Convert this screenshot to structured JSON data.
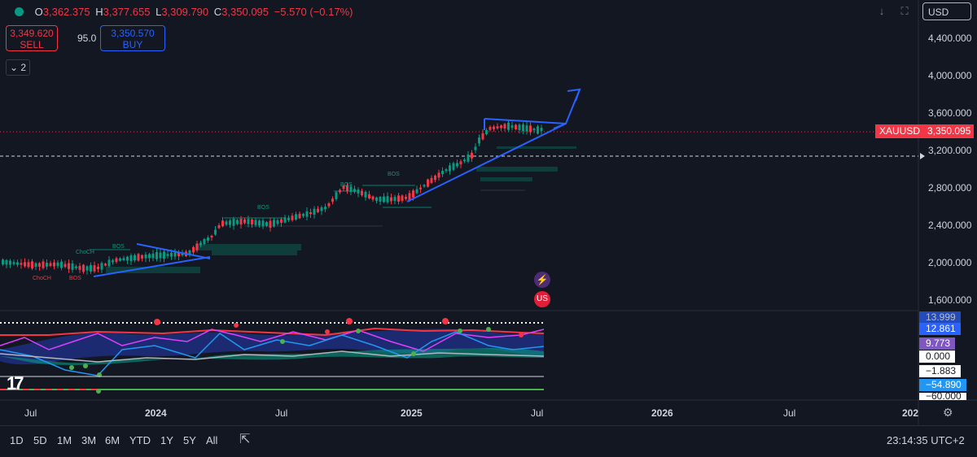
{
  "header": {
    "open_label": "O",
    "open": "3,362.375",
    "high_label": "H",
    "high": "3,377.655",
    "low_label": "L",
    "low": "3,309.790",
    "close_label": "C",
    "close": "3,350.095",
    "change": "−5.570 (−0.17%)"
  },
  "trade": {
    "sell_price": "3,349.620",
    "sell_label": "SELL",
    "spread": "95.0",
    "buy_price": "3,350.570",
    "buy_label": "BUY"
  },
  "collapse_count": "2",
  "currency": "USD",
  "symbol_tag": {
    "symbol": "XAUUSD",
    "price": "3,350.095"
  },
  "price_axis": [
    "4,400.000",
    "4,000.000",
    "3,600.000",
    "3,200.000",
    "2,800.000",
    "2,400.000",
    "2,000.000",
    "1,600.000"
  ],
  "indicator_axis": {
    "top": "13.999",
    "v1": "12.861",
    "v2": "9.773",
    "v3": "0.000",
    "v4": "−1.883",
    "v5": "−54.890",
    "bottom": "−60.000"
  },
  "time_axis": [
    "Jul",
    "2024",
    "Jul",
    "2025",
    "Jul",
    "2026",
    "Jul",
    "202"
  ],
  "smc_labels": [
    "ChoCH",
    "BOS",
    "ChoCH",
    "BOS",
    "BOS",
    "BOS",
    "BOS"
  ],
  "ranges": [
    "1D",
    "5D",
    "1M",
    "3M",
    "6M",
    "YTD",
    "1Y",
    "5Y",
    "All"
  ],
  "clock": "23:14:35 UTC+2",
  "tv_logo": "17",
  "icons": [
    "status-dot",
    "download-icon",
    "fullscreen-icon",
    "camera-icon",
    "settings-icon",
    "calendar-range-icon",
    "lightning-icon",
    "us-flag-icon"
  ],
  "colors": {
    "bull": "#089981",
    "bear": "#f23645",
    "accent": "#2962ff",
    "bg": "#131722"
  }
}
